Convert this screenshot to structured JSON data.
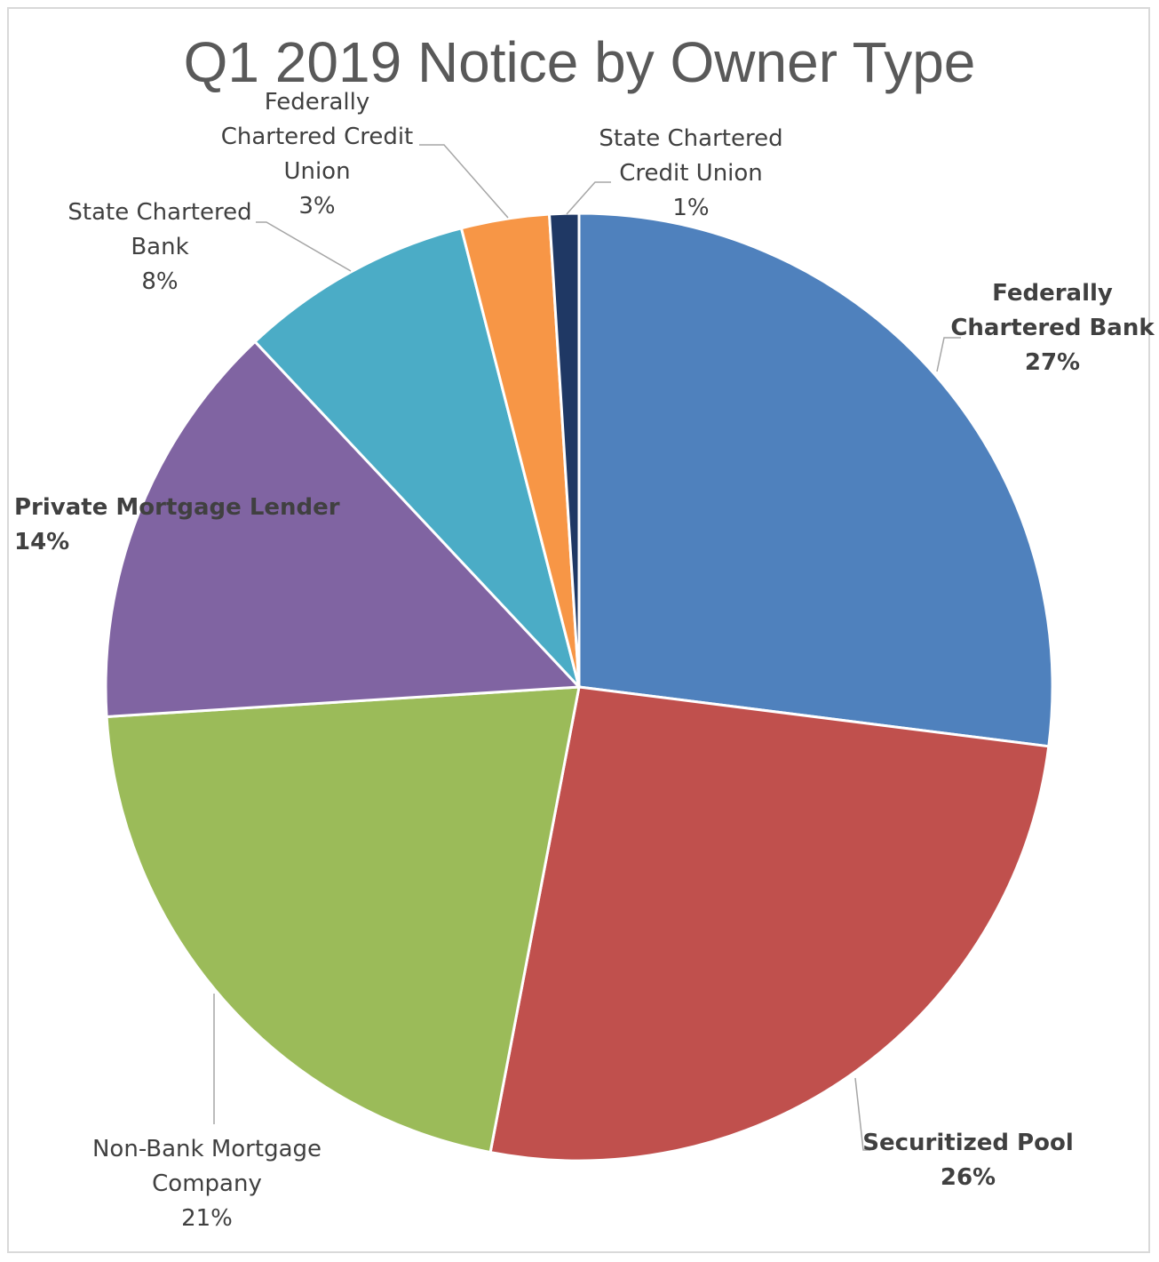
{
  "chart_data": {
    "type": "pie",
    "title": "Q1 2019 Notice by Owner Type",
    "slices": [
      {
        "label": [
          "Federally",
          "Chartered Bank"
        ],
        "percent_label": "27%",
        "value": 27,
        "color": "#4f81bd",
        "label_bold": true
      },
      {
        "label": [
          "Securitized Pool"
        ],
        "percent_label": "26%",
        "value": 26,
        "color": "#c0504d",
        "label_bold": true
      },
      {
        "label": [
          "Non-Bank Mortgage",
          "Company"
        ],
        "percent_label": "21%",
        "value": 21,
        "color": "#9bbb59",
        "label_bold": false
      },
      {
        "label": [
          "Private Mortgage Lender"
        ],
        "percent_label": "14%",
        "value": 14,
        "color": "#8064a2",
        "label_bold": true
      },
      {
        "label": [
          "State Chartered",
          "Bank"
        ],
        "percent_label": "8%",
        "value": 8,
        "color": "#4bacc6",
        "label_bold": false
      },
      {
        "label": [
          "Federally",
          "Chartered Credit",
          "Union"
        ],
        "percent_label": "3%",
        "value": 3,
        "color": "#f79646",
        "label_bold": false
      },
      {
        "label": [
          "State Chartered",
          "Credit Union"
        ],
        "percent_label": "1%",
        "value": 1,
        "color": "#1f3864",
        "label_bold": false
      }
    ],
    "start_direction": "12 o'clock",
    "direction": "clockwise",
    "legend": "none, labels outside slices"
  }
}
